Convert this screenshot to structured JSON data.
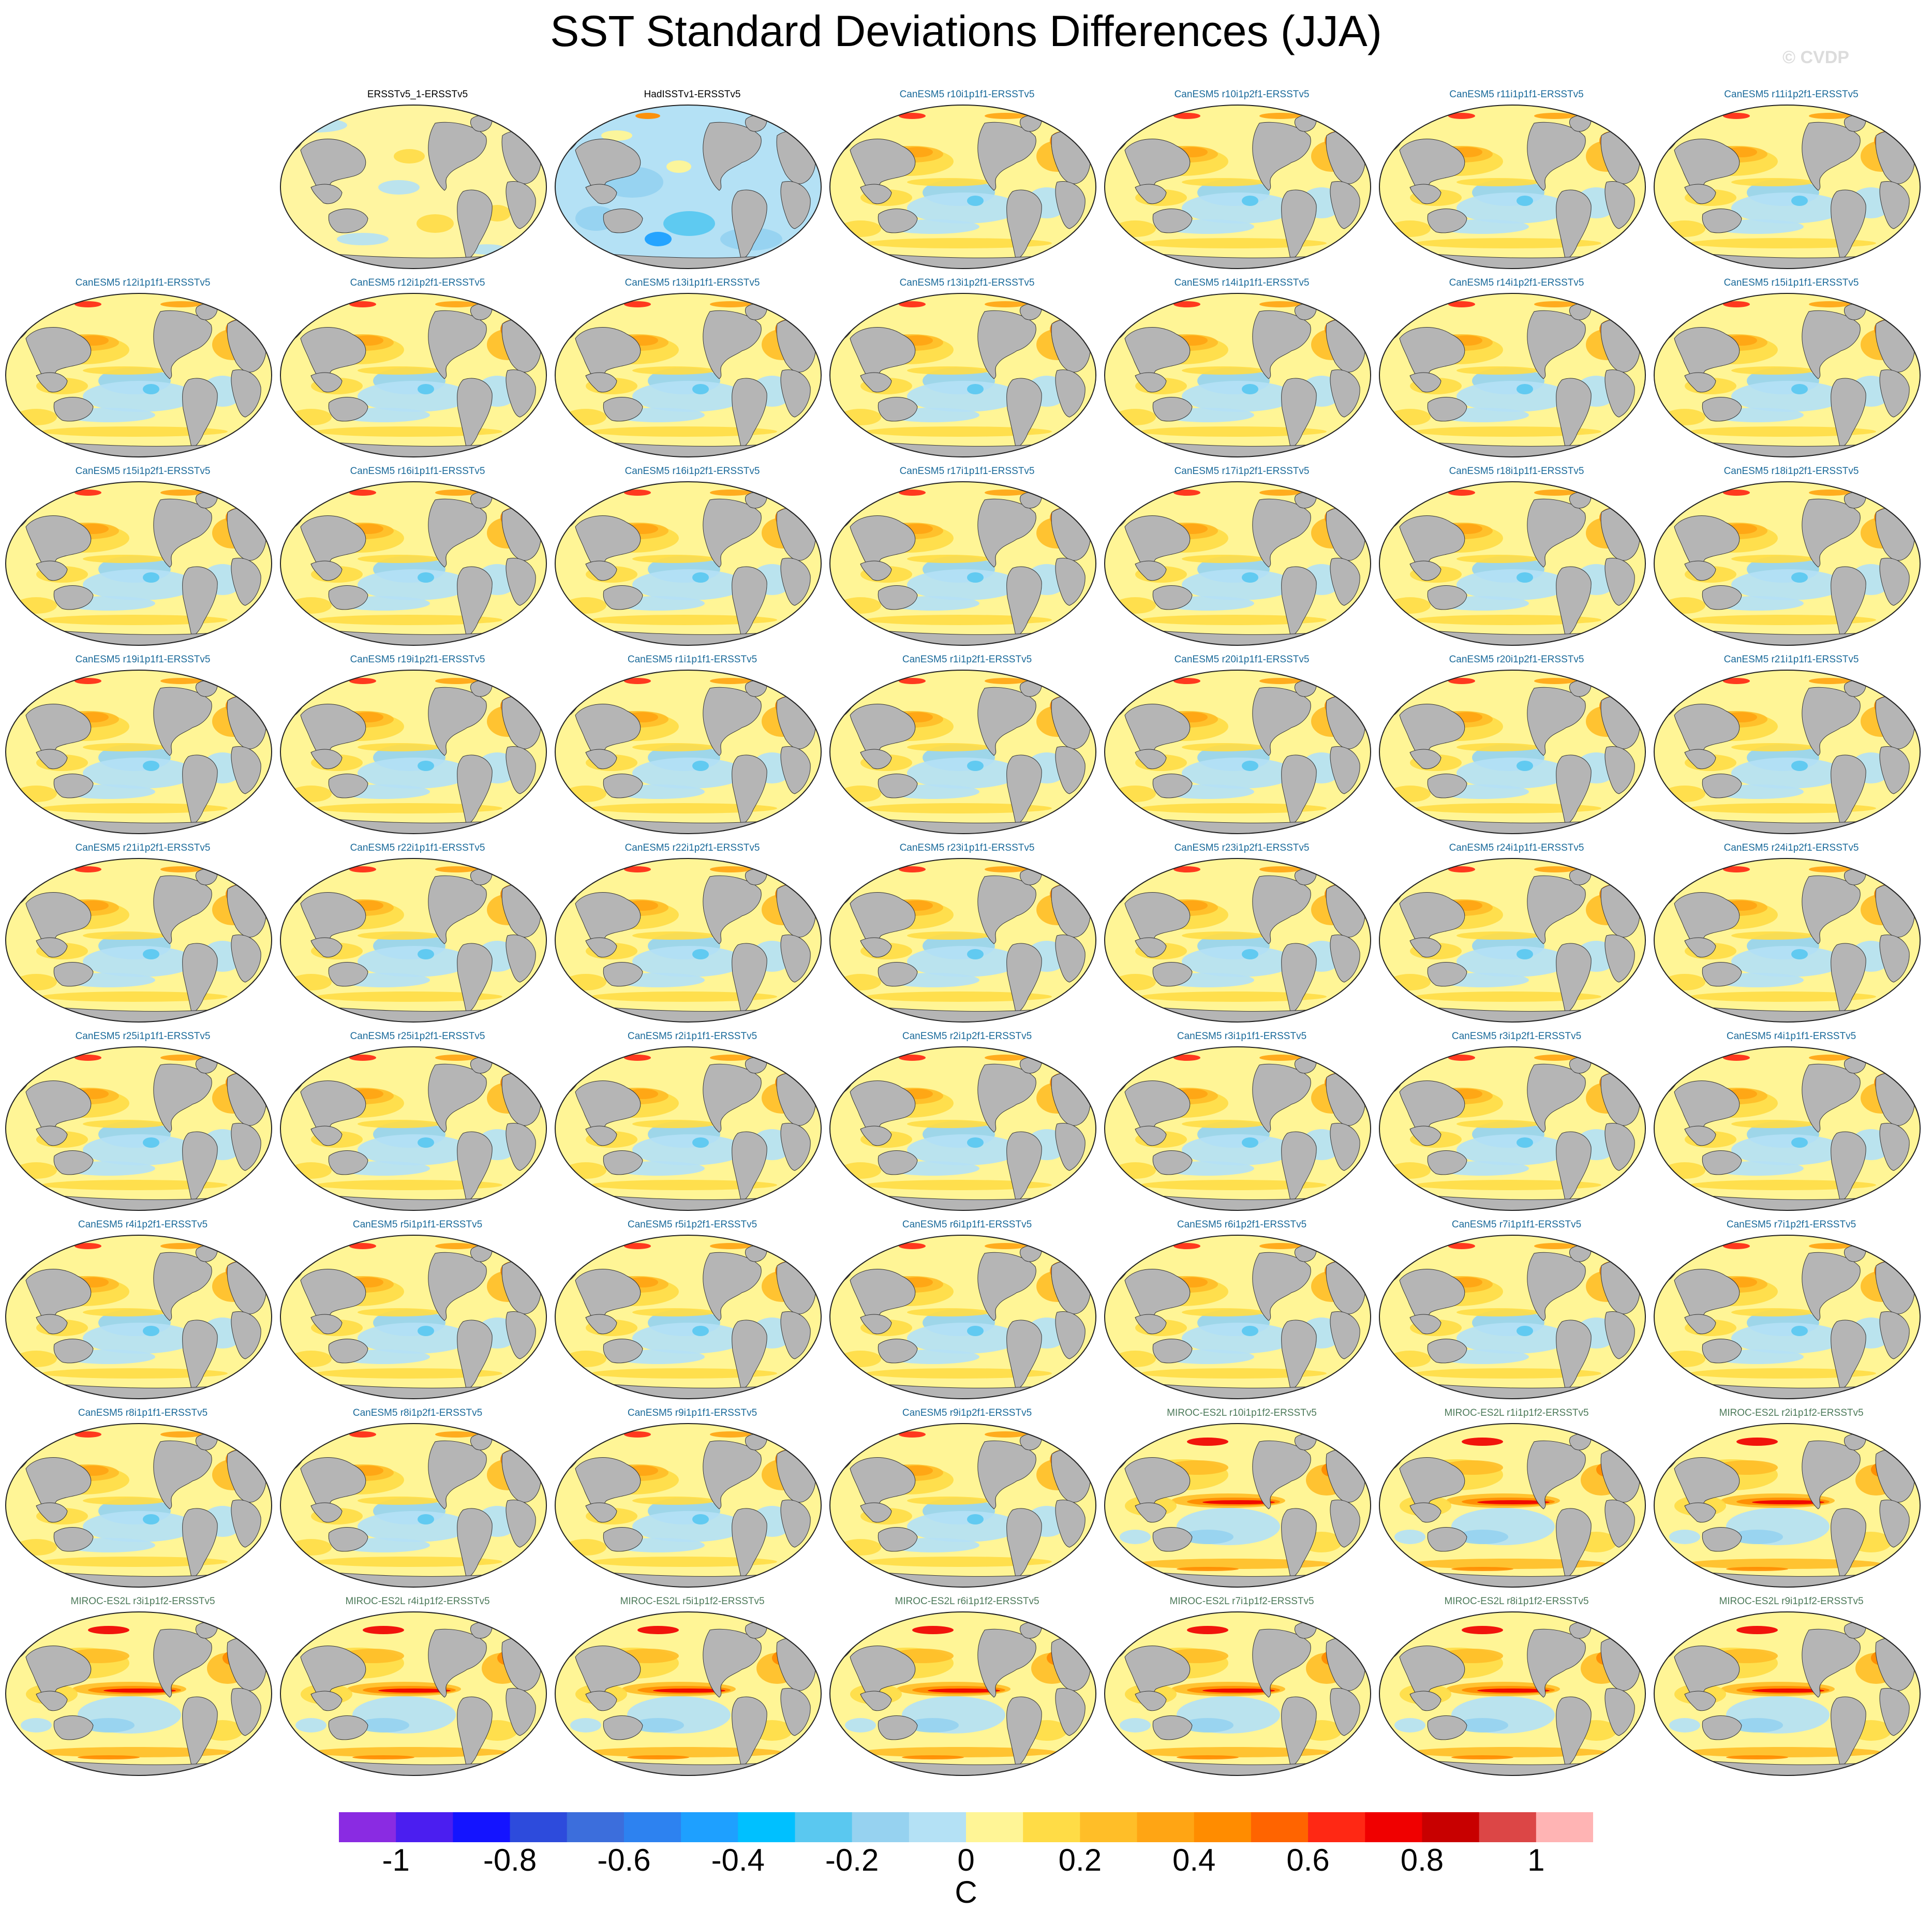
{
  "title": "SST Standard Deviations Differences (JJA)",
  "watermark": "© CVDP",
  "chart_data": {
    "type": "heatmap",
    "title": "SST Standard Deviations Differences (JJA)",
    "projection": "Robinson global maps, Pacific-centered",
    "units": "C",
    "colorbar": {
      "levels": [
        -1.1,
        -1.0,
        -0.9,
        -0.8,
        -0.7,
        -0.6,
        -0.5,
        -0.4,
        -0.3,
        -0.2,
        -0.1,
        0,
        0.1,
        0.2,
        0.3,
        0.4,
        0.5,
        0.6,
        0.7,
        0.8,
        0.9,
        1.0,
        1.1
      ],
      "colors": [
        "#8a2be2",
        "#4b1ef0",
        "#1414ff",
        "#2d4bdc",
        "#3c6edc",
        "#2d82f0",
        "#1ea0ff",
        "#00c0ff",
        "#5ac8f0",
        "#96d2f0",
        "#b4e1f5",
        "#fff596",
        "#ffdc46",
        "#ffbe28",
        "#ffa514",
        "#ff8c00",
        "#ff6400",
        "#ff2814",
        "#f00000",
        "#c80000",
        "#dc4646",
        "#ffb4b4"
      ],
      "tick_labels": [
        "-1",
        "-0.8",
        "-0.6",
        "-0.4",
        "-0.2",
        "0",
        "0.2",
        "0.4",
        "0.6",
        "0.8",
        "1"
      ],
      "tick_values": [
        -1,
        -0.8,
        -0.6,
        -0.4,
        -0.2,
        0,
        0.2,
        0.4,
        0.6,
        0.8,
        1
      ],
      "units_label": "C"
    },
    "panels": [
      {
        "label": "ERSSTv5_1-ERSSTv5",
        "group": "obs",
        "pattern": "obs-small"
      },
      {
        "label": "HadISSTv1-ERSSTv5",
        "group": "obs",
        "pattern": "obs-negative"
      },
      {
        "label": "CanESM5 r10i1p1f1-ERSSTv5",
        "group": "canesm",
        "pattern": "canesm"
      },
      {
        "label": "CanESM5 r10i1p2f1-ERSSTv5",
        "group": "canesm",
        "pattern": "canesm"
      },
      {
        "label": "CanESM5 r11i1p1f1-ERSSTv5",
        "group": "canesm",
        "pattern": "canesm"
      },
      {
        "label": "CanESM5 r11i1p2f1-ERSSTv5",
        "group": "canesm",
        "pattern": "canesm"
      },
      {
        "label": "CanESM5 r12i1p1f1-ERSSTv5",
        "group": "canesm",
        "pattern": "canesm"
      },
      {
        "label": "CanESM5 r12i1p2f1-ERSSTv5",
        "group": "canesm",
        "pattern": "canesm"
      },
      {
        "label": "CanESM5 r13i1p1f1-ERSSTv5",
        "group": "canesm",
        "pattern": "canesm"
      },
      {
        "label": "CanESM5 r13i1p2f1-ERSSTv5",
        "group": "canesm",
        "pattern": "canesm"
      },
      {
        "label": "CanESM5 r14i1p1f1-ERSSTv5",
        "group": "canesm",
        "pattern": "canesm"
      },
      {
        "label": "CanESM5 r14i1p2f1-ERSSTv5",
        "group": "canesm",
        "pattern": "canesm"
      },
      {
        "label": "CanESM5 r15i1p1f1-ERSSTv5",
        "group": "canesm",
        "pattern": "canesm"
      },
      {
        "label": "CanESM5 r15i1p2f1-ERSSTv5",
        "group": "canesm",
        "pattern": "canesm"
      },
      {
        "label": "CanESM5 r16i1p1f1-ERSSTv5",
        "group": "canesm",
        "pattern": "canesm"
      },
      {
        "label": "CanESM5 r16i1p2f1-ERSSTv5",
        "group": "canesm",
        "pattern": "canesm"
      },
      {
        "label": "CanESM5 r17i1p1f1-ERSSTv5",
        "group": "canesm",
        "pattern": "canesm"
      },
      {
        "label": "CanESM5 r17i1p2f1-ERSSTv5",
        "group": "canesm",
        "pattern": "canesm"
      },
      {
        "label": "CanESM5 r18i1p1f1-ERSSTv5",
        "group": "canesm",
        "pattern": "canesm"
      },
      {
        "label": "CanESM5 r18i1p2f1-ERSSTv5",
        "group": "canesm",
        "pattern": "canesm"
      },
      {
        "label": "CanESM5 r19i1p1f1-ERSSTv5",
        "group": "canesm",
        "pattern": "canesm"
      },
      {
        "label": "CanESM5 r19i1p2f1-ERSSTv5",
        "group": "canesm",
        "pattern": "canesm"
      },
      {
        "label": "CanESM5 r1i1p1f1-ERSSTv5",
        "group": "canesm",
        "pattern": "canesm"
      },
      {
        "label": "CanESM5 r1i1p2f1-ERSSTv5",
        "group": "canesm",
        "pattern": "canesm"
      },
      {
        "label": "CanESM5 r20i1p1f1-ERSSTv5",
        "group": "canesm",
        "pattern": "canesm"
      },
      {
        "label": "CanESM5 r20i1p2f1-ERSSTv5",
        "group": "canesm",
        "pattern": "canesm"
      },
      {
        "label": "CanESM5 r21i1p1f1-ERSSTv5",
        "group": "canesm",
        "pattern": "canesm"
      },
      {
        "label": "CanESM5 r21i1p2f1-ERSSTv5",
        "group": "canesm",
        "pattern": "canesm"
      },
      {
        "label": "CanESM5 r22i1p1f1-ERSSTv5",
        "group": "canesm",
        "pattern": "canesm"
      },
      {
        "label": "CanESM5 r22i1p2f1-ERSSTv5",
        "group": "canesm",
        "pattern": "canesm"
      },
      {
        "label": "CanESM5 r23i1p1f1-ERSSTv5",
        "group": "canesm",
        "pattern": "canesm"
      },
      {
        "label": "CanESM5 r23i1p2f1-ERSSTv5",
        "group": "canesm",
        "pattern": "canesm"
      },
      {
        "label": "CanESM5 r24i1p1f1-ERSSTv5",
        "group": "canesm",
        "pattern": "canesm"
      },
      {
        "label": "CanESM5 r24i1p2f1-ERSSTv5",
        "group": "canesm",
        "pattern": "canesm"
      },
      {
        "label": "CanESM5 r25i1p1f1-ERSSTv5",
        "group": "canesm",
        "pattern": "canesm"
      },
      {
        "label": "CanESM5 r25i1p2f1-ERSSTv5",
        "group": "canesm",
        "pattern": "canesm"
      },
      {
        "label": "CanESM5 r2i1p1f1-ERSSTv5",
        "group": "canesm",
        "pattern": "canesm"
      },
      {
        "label": "CanESM5 r2i1p2f1-ERSSTv5",
        "group": "canesm",
        "pattern": "canesm"
      },
      {
        "label": "CanESM5 r3i1p1f1-ERSSTv5",
        "group": "canesm",
        "pattern": "canesm"
      },
      {
        "label": "CanESM5 r3i1p2f1-ERSSTv5",
        "group": "canesm",
        "pattern": "canesm"
      },
      {
        "label": "CanESM5 r4i1p1f1-ERSSTv5",
        "group": "canesm",
        "pattern": "canesm"
      },
      {
        "label": "CanESM5 r4i1p2f1-ERSSTv5",
        "group": "canesm",
        "pattern": "canesm"
      },
      {
        "label": "CanESM5 r5i1p1f1-ERSSTv5",
        "group": "canesm",
        "pattern": "canesm"
      },
      {
        "label": "CanESM5 r5i1p2f1-ERSSTv5",
        "group": "canesm",
        "pattern": "canesm"
      },
      {
        "label": "CanESM5 r6i1p1f1-ERSSTv5",
        "group": "canesm",
        "pattern": "canesm"
      },
      {
        "label": "CanESM5 r6i1p2f1-ERSSTv5",
        "group": "canesm",
        "pattern": "canesm"
      },
      {
        "label": "CanESM5 r7i1p1f1-ERSSTv5",
        "group": "canesm",
        "pattern": "canesm"
      },
      {
        "label": "CanESM5 r7i1p2f1-ERSSTv5",
        "group": "canesm",
        "pattern": "canesm"
      },
      {
        "label": "CanESM5 r8i1p1f1-ERSSTv5",
        "group": "canesm",
        "pattern": "canesm"
      },
      {
        "label": "CanESM5 r8i1p2f1-ERSSTv5",
        "group": "canesm",
        "pattern": "canesm"
      },
      {
        "label": "CanESM5 r9i1p1f1-ERSSTv5",
        "group": "canesm",
        "pattern": "canesm"
      },
      {
        "label": "CanESM5 r9i1p2f1-ERSSTv5",
        "group": "canesm",
        "pattern": "canesm"
      },
      {
        "label": "MIROC-ES2L r10i1p1f2-ERSSTv5",
        "group": "miroc",
        "pattern": "miroc"
      },
      {
        "label": "MIROC-ES2L r1i1p1f2-ERSSTv5",
        "group": "miroc",
        "pattern": "miroc"
      },
      {
        "label": "MIROC-ES2L r2i1p1f2-ERSSTv5",
        "group": "miroc",
        "pattern": "miroc"
      },
      {
        "label": "MIROC-ES2L r3i1p1f2-ERSSTv5",
        "group": "miroc",
        "pattern": "miroc"
      },
      {
        "label": "MIROC-ES2L r4i1p1f2-ERSSTv5",
        "group": "miroc",
        "pattern": "miroc"
      },
      {
        "label": "MIROC-ES2L r5i1p1f2-ERSSTv5",
        "group": "miroc",
        "pattern": "miroc"
      },
      {
        "label": "MIROC-ES2L r6i1p1f2-ERSSTv5",
        "group": "miroc",
        "pattern": "miroc"
      },
      {
        "label": "MIROC-ES2L r7i1p1f2-ERSSTv5",
        "group": "miroc",
        "pattern": "miroc"
      },
      {
        "label": "MIROC-ES2L r8i1p1f2-ERSSTv5",
        "group": "miroc",
        "pattern": "miroc"
      },
      {
        "label": "MIROC-ES2L r9i1p1f2-ERSSTv5",
        "group": "miroc",
        "pattern": "miroc"
      }
    ]
  }
}
